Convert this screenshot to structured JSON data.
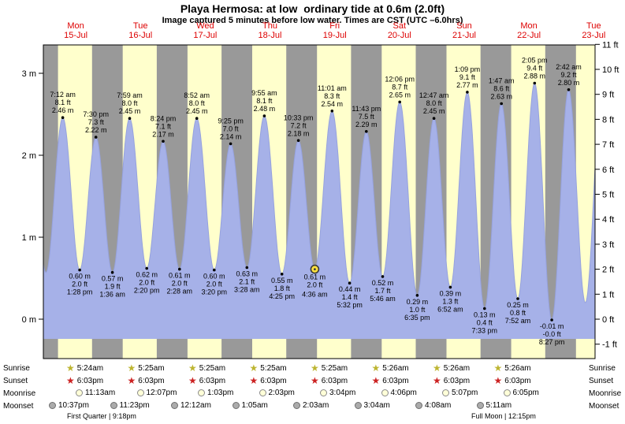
{
  "title": "Playa Hermosa: at low  ordinary tide at 0.6m (2.0ft)",
  "subtitle": "Image captured 5 minutes before low water. Times are CST (UTC –6.0hrs)",
  "colors": {
    "night_band": "#999999",
    "day_band": "#ffffcc",
    "tide_fill": "#a6b1e8",
    "tide_line": "#96a2de",
    "dot": "#000000",
    "day_label": "#dd0000",
    "plot_border": "#000000",
    "marker_fill": "#ffe23e",
    "marker_ring": "#3a3a3a",
    "sunrise_star": "#bdb530",
    "sunset_star": "#cc2222",
    "moonrise_fill": "#ffffd8",
    "moonrise_border": "#8a8a8a",
    "moonset_fill": "#ababab",
    "moonset_border": "#6e6e6e"
  },
  "chart_data": {
    "type": "area",
    "title": "Playa Hermosa tide heights, 15-Jul to 23-Jul",
    "x_unit": "hours from Mon 15-Jul 00:00 CST",
    "span_hours": 204.5,
    "day_labels": [
      {
        "day": "Mon",
        "date": "15-Jul"
      },
      {
        "day": "Tue",
        "date": "16-Jul"
      },
      {
        "day": "Wed",
        "date": "17-Jul"
      },
      {
        "day": "Thu",
        "date": "18-Jul"
      },
      {
        "day": "Fri",
        "date": "19-Jul"
      },
      {
        "day": "Sat",
        "date": "20-Jul"
      },
      {
        "day": "Sun",
        "date": "21-Jul"
      },
      {
        "day": "Mon",
        "date": "22-Jul"
      },
      {
        "day": "Tue",
        "date": "23-Jul"
      }
    ],
    "y_axis_left": {
      "unit": "m",
      "ticks": [
        0,
        1,
        2,
        3
      ]
    },
    "y_axis_right": {
      "unit": "ft",
      "ticks": [
        -1,
        0,
        1,
        2,
        3,
        4,
        5,
        6,
        7,
        8,
        9,
        10,
        11
      ]
    },
    "sun": {
      "sunrise_hour": 5.42,
      "sunset_hour": 18.05
    },
    "extremes": [
      {
        "type": "high",
        "hour": -5.1,
        "m": 2.25,
        "hidden": true
      },
      {
        "type": "low",
        "hour": 0.95,
        "m": 0.57,
        "hidden": true
      },
      {
        "type": "high",
        "hour": 7.2,
        "m": 2.46,
        "time": "7:12 am",
        "ft_label": "8.1 ft",
        "m_label": "2.46 m"
      },
      {
        "type": "low",
        "hour": 13.47,
        "m": 0.6,
        "time": "1:28 pm",
        "ft_label": "2.0 ft",
        "m_label": "0.60 m"
      },
      {
        "type": "high",
        "hour": 19.5,
        "m": 2.22,
        "time": "7:30 pm",
        "ft_label": "7.3 ft",
        "m_label": "2.22 m"
      },
      {
        "type": "low",
        "hour": 25.6,
        "m": 0.57,
        "time": "1:36 am",
        "ft_label": "1.9 ft",
        "m_label": "0.57 m"
      },
      {
        "type": "high",
        "hour": 31.98,
        "m": 2.45,
        "time": "7:59 am",
        "ft_label": "8.0 ft",
        "m_label": "2.45 m"
      },
      {
        "type": "low",
        "hour": 38.33,
        "m": 0.62,
        "time": "2:20 pm",
        "ft_label": "2.0 ft",
        "m_label": "0.62 m"
      },
      {
        "type": "high",
        "hour": 44.4,
        "m": 2.17,
        "time": "8:24 pm",
        "ft_label": "7.1 ft",
        "m_label": "2.17 m"
      },
      {
        "type": "low",
        "hour": 50.47,
        "m": 0.61,
        "time": "2:28 am",
        "ft_label": "2.0 ft",
        "m_label": "0.61 m"
      },
      {
        "type": "high",
        "hour": 56.87,
        "m": 2.45,
        "time": "8:52 am",
        "ft_label": "8.0 ft",
        "m_label": "2.45 m"
      },
      {
        "type": "low",
        "hour": 63.33,
        "m": 0.6,
        "time": "3:20 pm",
        "ft_label": "2.0 ft",
        "m_label": "0.60 m"
      },
      {
        "type": "high",
        "hour": 69.42,
        "m": 2.14,
        "time": "9:25 pm",
        "ft_label": "7.0 ft",
        "m_label": "2.14 m"
      },
      {
        "type": "low",
        "hour": 75.47,
        "m": 0.63,
        "time": "3:28 am",
        "ft_label": "2.1 ft",
        "m_label": "0.63 m"
      },
      {
        "type": "high",
        "hour": 81.92,
        "m": 2.48,
        "time": "9:55 am",
        "ft_label": "8.1 ft",
        "m_label": "2.48 m"
      },
      {
        "type": "low",
        "hour": 88.42,
        "m": 0.55,
        "time": "4:25 pm",
        "ft_label": "1.8 ft",
        "m_label": "0.55 m"
      },
      {
        "type": "high",
        "hour": 94.55,
        "m": 2.18,
        "time": "10:33 pm",
        "ft_label": "7.2 ft",
        "m_label": "2.18 m"
      },
      {
        "type": "low",
        "hour": 100.6,
        "m": 0.61,
        "time": "4:36 am",
        "ft_label": "2.0 ft",
        "m_label": "0.61 m",
        "marker": true
      },
      {
        "type": "high",
        "hour": 107.02,
        "m": 2.54,
        "time": "11:01 am",
        "ft_label": "8.3 ft",
        "m_label": "2.54 m"
      },
      {
        "type": "low",
        "hour": 113.53,
        "m": 0.44,
        "time": "5:32 pm",
        "ft_label": "1.4 ft",
        "m_label": "0.44 m"
      },
      {
        "type": "high",
        "hour": 119.72,
        "m": 2.29,
        "time": "11:43 pm",
        "ft_label": "7.5 ft",
        "m_label": "2.29 m"
      },
      {
        "type": "low",
        "hour": 125.77,
        "m": 0.52,
        "time": "5:46 am",
        "ft_label": "1.7 ft",
        "m_label": "0.52 m"
      },
      {
        "type": "high",
        "hour": 132.1,
        "m": 2.65,
        "time": "12:06 pm",
        "ft_label": "8.7 ft",
        "m_label": "2.65 m"
      },
      {
        "type": "low",
        "hour": 138.58,
        "m": 0.29,
        "time": "6:35 pm",
        "ft_label": "1.0 ft",
        "m_label": "0.29 m"
      },
      {
        "type": "high",
        "hour": 144.78,
        "m": 2.45,
        "time": "12:47 am",
        "ft_label": "8.0 ft",
        "m_label": "2.45 m"
      },
      {
        "type": "low",
        "hour": 150.87,
        "m": 0.39,
        "time": "6:52 am",
        "ft_label": "1.3 ft",
        "m_label": "0.39 m"
      },
      {
        "type": "high",
        "hour": 157.15,
        "m": 2.77,
        "time": "1:09 pm",
        "ft_label": "9.1 ft",
        "m_label": "2.77 m"
      },
      {
        "type": "low",
        "hour": 163.55,
        "m": 0.13,
        "time": "7:33 pm",
        "ft_label": "0.4 ft",
        "m_label": "0.13 m"
      },
      {
        "type": "high",
        "hour": 169.78,
        "m": 2.63,
        "time": "1:47 am",
        "ft_label": "8.6 ft",
        "m_label": "2.63 m"
      },
      {
        "type": "low",
        "hour": 175.87,
        "m": 0.25,
        "time": "7:52 am",
        "ft_label": "0.8 ft",
        "m_label": "0.25 m"
      },
      {
        "type": "high",
        "hour": 182.08,
        "m": 2.88,
        "time": "2:05 pm",
        "ft_label": "9.4 ft",
        "m_label": "2.88 m"
      },
      {
        "type": "low",
        "hour": 188.45,
        "m": -0.01,
        "time": "8:27 pm",
        "ft_label": "-0.0 ft",
        "m_label": "-0.01 m"
      },
      {
        "type": "high",
        "hour": 194.7,
        "m": 2.8,
        "time": "2:42 am",
        "ft_label": "9.2 ft",
        "m_label": "2.80 m"
      },
      {
        "type": "low",
        "hour": 200.9,
        "m": 0.2,
        "hidden": true
      },
      {
        "type": "high",
        "hour": 207.2,
        "m": 2.9,
        "hidden": true
      }
    ]
  },
  "astro": {
    "rows": [
      {
        "name": "sunrise",
        "label": "Sunrise",
        "icon": "sunrise-star-icon",
        "times": [
          "5:24am",
          "5:25am",
          "5:25am",
          "5:25am",
          "5:25am",
          "5:26am",
          "5:26am",
          "5:26am"
        ]
      },
      {
        "name": "sunset",
        "label": "Sunset",
        "icon": "sunset-star-icon",
        "times": [
          "6:03pm",
          "6:03pm",
          "6:03pm",
          "6:03pm",
          "6:03pm",
          "6:03pm",
          "6:03pm",
          "6:03pm"
        ]
      },
      {
        "name": "moonrise",
        "label": "Moonrise",
        "icon": "moonrise-icon",
        "times": [
          "11:13am",
          "12:07pm",
          "1:03pm",
          "2:03pm",
          "3:04pm",
          "4:06pm",
          "5:07pm",
          "6:05pm"
        ]
      },
      {
        "name": "moonset",
        "label": "Moonset",
        "icon": "moonset-icon",
        "times": [
          "10:37pm",
          "11:23pm",
          "12:12am",
          "1:05am",
          "2:03am",
          "3:04am",
          "4:08am",
          "5:11am"
        ]
      }
    ],
    "moon_phases": [
      {
        "text": "First Quarter | 9:18pm"
      },
      {
        "text": "Full Moon | 12:15pm"
      }
    ]
  }
}
